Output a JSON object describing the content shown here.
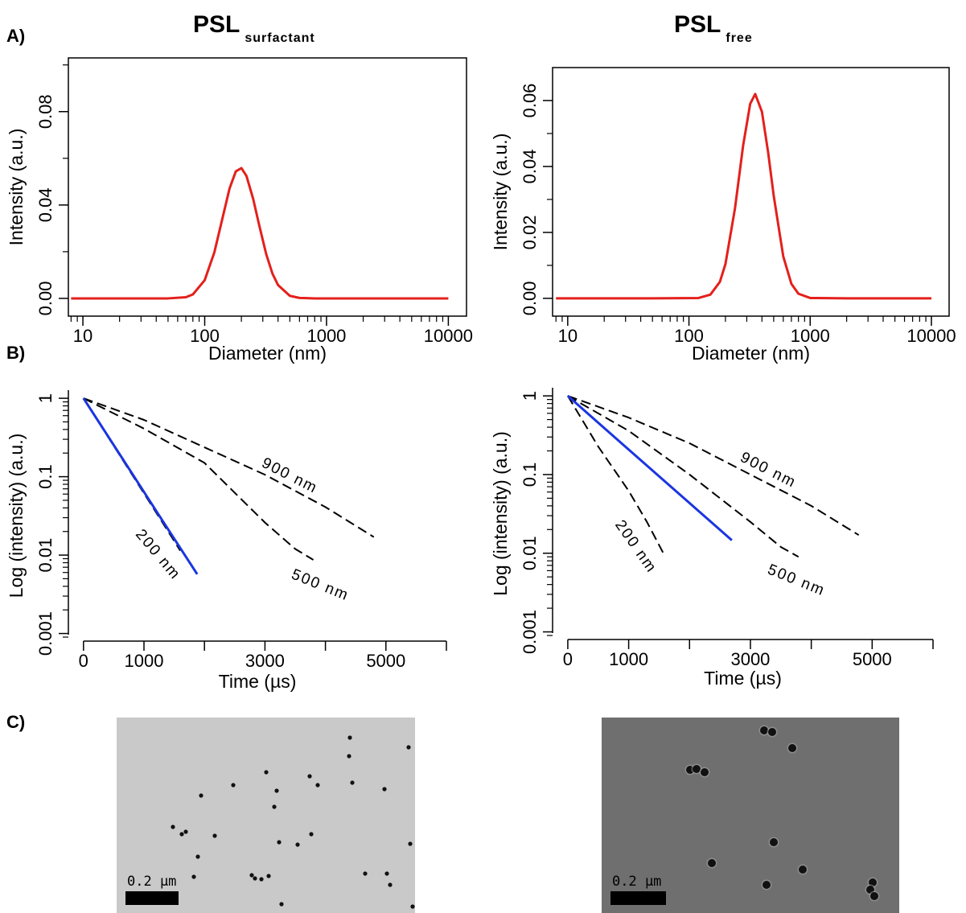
{
  "panel_labels": [
    "A)",
    "B)",
    "C)"
  ],
  "column_titles": [
    {
      "text": "PSL",
      "subscript": "surfactant"
    },
    {
      "text": "PSL",
      "subscript": "free"
    }
  ],
  "chart_data": [
    {
      "type": "line",
      "xlabel": "Diameter (nm)",
      "ylabel": "Intensity (a.u.)",
      "xscale": "log",
      "frame": true,
      "xlim": [
        7.6,
        14100
      ],
      "xticks": [
        10,
        100,
        1000,
        10000
      ],
      "ylim": [
        -0.0076,
        0.103
      ],
      "yticks": [
        {
          "value": 0,
          "label": "0.00"
        },
        {
          "value": 0.04,
          "label": "0.04"
        },
        {
          "value": 0.08,
          "label": "0.08"
        }
      ],
      "yminorticks": [
        0.02,
        0.06,
        0.1
      ],
      "series": [
        {
          "color": "#e3201c",
          "dash": false,
          "x": [
            8,
            20,
            50,
            70,
            80,
            100,
            120,
            140,
            160,
            180,
            200,
            220,
            250,
            280,
            320,
            360,
            400,
            500,
            600,
            800,
            2000,
            10000
          ],
          "values": [
            0,
            0,
            0,
            0.0005,
            0.0017,
            0.0078,
            0.0197,
            0.0344,
            0.0471,
            0.0544,
            0.0558,
            0.0525,
            0.0426,
            0.0314,
            0.0189,
            0.0106,
            0.0057,
            0.0011,
            0.0002,
            0,
            0,
            0
          ]
        }
      ]
    },
    {
      "type": "line",
      "xlabel": "Diameter (nm)",
      "ylabel": "Intensity (a.u.)",
      "xscale": "log",
      "frame": true,
      "xlim": [
        7.5,
        14000
      ],
      "xticks": [
        10,
        100,
        1000,
        10000
      ],
      "ylim": [
        -0.0054,
        0.07
      ],
      "yticks": [
        {
          "value": 0,
          "label": "0.00"
        },
        {
          "value": 0.02,
          "label": "0.02"
        },
        {
          "value": 0.04,
          "label": "0.04"
        },
        {
          "value": 0.06,
          "label": "0.06"
        }
      ],
      "yminorticks": [
        0.01,
        0.03,
        0.05
      ],
      "series": [
        {
          "color": "#e3201c",
          "dash": false,
          "x": [
            8,
            50,
            120,
            150,
            180,
            200,
            240,
            280,
            320,
            352,
            400,
            450,
            500,
            600,
            700,
            800,
            1000,
            2000,
            10000
          ],
          "values": [
            0,
            0,
            0.0001,
            0.0011,
            0.005,
            0.0104,
            0.0274,
            0.0464,
            0.059,
            0.062,
            0.0566,
            0.0443,
            0.0312,
            0.0127,
            0.0044,
            0.0014,
            0.0001,
            0,
            0
          ]
        }
      ]
    },
    {
      "type": "line",
      "xlabel": "Time (µs)",
      "ylabel": "Log (intensity) (a.u.)",
      "yscale": "log",
      "frame": false,
      "xlim": [
        -250,
        6000
      ],
      "xticks": [
        0,
        1000,
        3000,
        5000
      ],
      "xminorticks": [
        2000,
        4000,
        6000
      ],
      "ylim": [
        0.0008,
        1.27
      ],
      "yticks": [
        1,
        0.1,
        0.01,
        0.001
      ],
      "series": [
        {
          "name": "900 nm",
          "color": "#000000",
          "dash": true,
          "x": [
            0,
            1000,
            2000,
            3000,
            4000,
            4800
          ],
          "values": [
            1,
            0.53,
            0.237,
            0.106,
            0.041,
            0.017
          ]
        },
        {
          "name": "500 nm",
          "color": "#000000",
          "dash": true,
          "x": [
            0,
            1000,
            2000,
            3000,
            3500,
            3800
          ],
          "values": [
            1,
            0.41,
            0.15,
            0.026,
            0.012,
            0.0087
          ]
        },
        {
          "name": "200 nm",
          "color": "#000000",
          "dash": true,
          "x": [
            0,
            400,
            800,
            1200,
            1600
          ],
          "values": [
            1,
            0.327,
            0.107,
            0.035,
            0.0114
          ]
        },
        {
          "color": "#1a35e0",
          "dash": false,
          "x": [
            0,
            400,
            800,
            1200,
            1600,
            1880
          ],
          "values": [
            1,
            0.333,
            0.111,
            0.0368,
            0.0123,
            0.0057
          ]
        }
      ]
    },
    {
      "type": "line",
      "xlabel": "Time (µs)",
      "ylabel": "Log (intensity) (a.u.)",
      "yscale": "log",
      "frame": false,
      "xlim": [
        -250,
        6000
      ],
      "xticks": [
        0,
        1000,
        3000,
        5000
      ],
      "xminorticks": [
        2000,
        4000,
        6000
      ],
      "ylim": [
        0.0008,
        1.27
      ],
      "yticks": [
        1,
        0.1,
        0.01,
        0.001
      ],
      "series": [
        {
          "name": "900 nm",
          "color": "#000000",
          "dash": true,
          "x": [
            0,
            1000,
            2000,
            3000,
            4000,
            4780
          ],
          "values": [
            1,
            0.53,
            0.25,
            0.1,
            0.04,
            0.017
          ]
        },
        {
          "name": "500 nm",
          "color": "#000000",
          "dash": true,
          "x": [
            0,
            1000,
            2000,
            3000,
            3500,
            3790
          ],
          "values": [
            1,
            0.36,
            0.1,
            0.025,
            0.012,
            0.009
          ]
        },
        {
          "name": "200 nm",
          "color": "#000000",
          "dash": true,
          "x": [
            0,
            500,
            1000,
            1300,
            1585
          ],
          "values": [
            1,
            0.227,
            0.062,
            0.025,
            0.0095
          ]
        },
        {
          "color": "#1a35e0",
          "dash": false,
          "x": [
            0,
            1000,
            2000,
            2695
          ],
          "values": [
            1,
            0.208,
            0.0434,
            0.0146
          ]
        }
      ]
    }
  ],
  "micrographs": [
    {
      "scale_label": "0.2 µm"
    },
    {
      "scale_label": "0.2 µm"
    }
  ]
}
